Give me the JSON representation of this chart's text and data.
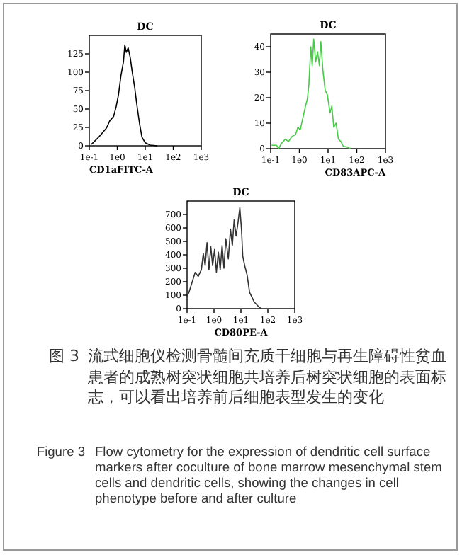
{
  "chart_data": [
    {
      "type": "line",
      "title": "DC",
      "xlabel": "CD1aFITC-A",
      "log": "x",
      "color": "#000000",
      "x": [
        0.12,
        0.22,
        0.41,
        0.54,
        0.74,
        0.91,
        1.1,
        1.35,
        1.66,
        1.86,
        2.1,
        2.45,
        2.9,
        3.4,
        4.2,
        5.0,
        6.2,
        7.6,
        10,
        15,
        27
      ],
      "values": [
        2,
        12,
        24,
        34,
        40,
        53,
        69,
        95,
        114,
        137,
        127,
        133,
        120,
        101,
        79,
        56,
        31,
        12,
        4,
        1,
        0
      ],
      "xlim": [
        0.1,
        1000
      ],
      "ylim": [
        0,
        150
      ],
      "xticks": [
        {
          "value": 0.1,
          "label": "1e-1"
        },
        {
          "value": 1,
          "label": "1e0"
        },
        {
          "value": 10,
          "label": "1e1"
        },
        {
          "value": 100,
          "label": "1e2"
        },
        {
          "value": 1000,
          "label": "1e3"
        }
      ],
      "yticks": [
        0,
        25,
        50,
        75,
        100,
        125
      ]
    },
    {
      "type": "line",
      "title": "DC",
      "xlabel": "CD83APC-A",
      "log": "x",
      "color": "#44cc44",
      "x": [
        0.107,
        0.16,
        0.19,
        0.23,
        0.32,
        0.42,
        0.54,
        0.74,
        0.89,
        1.07,
        1.32,
        1.58,
        1.9,
        2.14,
        2.5,
        2.8,
        3.16,
        3.7,
        4.3,
        5.0,
        5.6,
        6.6,
        7.9,
        9.5,
        11.7,
        13.5,
        15.8,
        19,
        23,
        28,
        34,
        47,
        60
      ],
      "values": [
        1.3,
        1.3,
        0,
        1.9,
        3.7,
        2.8,
        4.7,
        5.6,
        8.4,
        7.4,
        12,
        16,
        19.5,
        25,
        40,
        32.6,
        43,
        34,
        38,
        32.6,
        42,
        30.7,
        23,
        21,
        14,
        16.7,
        8.4,
        10,
        3.7,
        2.8,
        0.9,
        0.6,
        0
      ],
      "xlim": [
        0.1,
        1000
      ],
      "ylim": [
        0,
        45
      ],
      "xticks": [
        {
          "value": 0.1,
          "label": "1e-1"
        },
        {
          "value": 1,
          "label": "1e0"
        },
        {
          "value": 10,
          "label": "1e1"
        },
        {
          "value": 100,
          "label": "1e2"
        },
        {
          "value": 1000,
          "label": "1e3"
        }
      ],
      "yticks": [
        0,
        10,
        20,
        30,
        40
      ]
    },
    {
      "type": "line",
      "title": "DC",
      "xlabel": "CD80PE-A",
      "log": "x",
      "color": "#333333",
      "x": [
        0.1,
        0.117,
        0.15,
        0.2,
        0.26,
        0.34,
        0.4,
        0.47,
        0.55,
        0.65,
        0.76,
        0.89,
        1.05,
        1.23,
        1.45,
        1.7,
        2.0,
        2.34,
        2.75,
        3.4,
        4.1,
        4.8,
        5.6,
        6.6,
        7.8,
        9.1,
        10.5,
        11.7,
        13.8,
        17,
        21,
        25,
        31,
        43,
        56
      ],
      "values": [
        90,
        120,
        190,
        270,
        240,
        290,
        410,
        320,
        490,
        290,
        460,
        320,
        440,
        270,
        420,
        290,
        470,
        300,
        520,
        370,
        590,
        470,
        660,
        540,
        640,
        750,
        590,
        390,
        320,
        250,
        120,
        90,
        50,
        20,
        0
      ],
      "xlim": [
        0.1,
        1000
      ],
      "ylim": [
        0,
        800
      ],
      "xticks": [
        {
          "value": 0.1,
          "label": "1e-1"
        },
        {
          "value": 1,
          "label": "1e0"
        },
        {
          "value": 10,
          "label": "1e1"
        },
        {
          "value": 100,
          "label": "1e2"
        },
        {
          "value": 1000,
          "label": "1e3"
        }
      ],
      "yticks": [
        0,
        100,
        200,
        300,
        400,
        500,
        600,
        700
      ],
      "annotations": [
        "图 3",
        "流式细胞仪检测骨髓间充质干细胞与再生障碍性贫血患者的成熟树突状细胞共培养后树突状细胞的表面标志，可以看出培养前后细胞表型发生的变化",
        "Figure 3",
        "Flow cytometry for the expression of dendritic cell surface markers after coculture of bone marrow mesenchymal stem cells and dendritic cells, showing the changes in cell phenotype before and after culture"
      ]
    }
  ]
}
